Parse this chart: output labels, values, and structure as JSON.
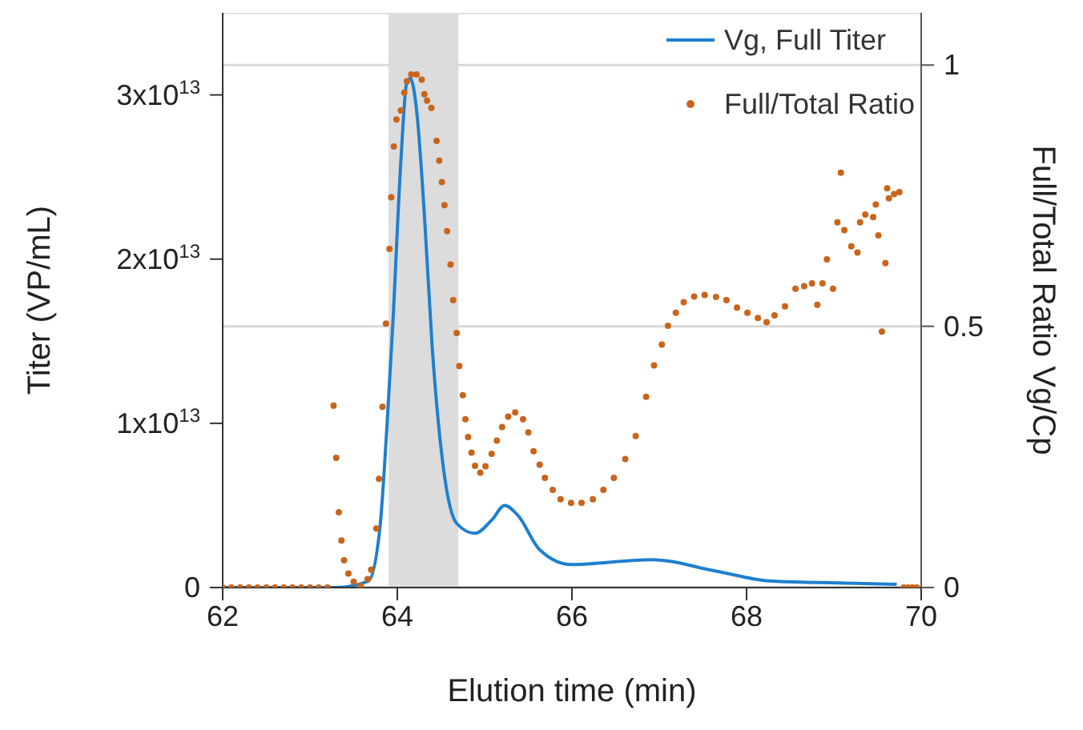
{
  "chart_data": {
    "type": "line",
    "xlabel": "Elution time (min)",
    "ylabel": "Titer (VP/mL)",
    "y2label": "Full/Total Ratio Vg/Cp",
    "xlim": [
      62,
      70
    ],
    "xticks": [
      62,
      64,
      66,
      68,
      70
    ],
    "ylim": [
      0,
      35000000000000.0
    ],
    "yticks": [
      {
        "value": 0,
        "label": "0"
      },
      {
        "value": 10000000000000.0,
        "label": "1x10$^{13}$"
      },
      {
        "value": 20000000000000.0,
        "label": "2x10$^{13}$"
      },
      {
        "value": 30000000000000.0,
        "label": "3x10$^{13}$"
      }
    ],
    "y2lim": [
      0,
      1.1
    ],
    "y2ticks": [
      0,
      0.5,
      1
    ],
    "grid": "y2",
    "legend": "top right",
    "bands": [
      {
        "axis": "x",
        "from": 63.9,
        "to": 64.7,
        "color": "#dcdcdc"
      }
    ],
    "series": [
      {
        "name": "Vg, Full Titer",
        "color": "#1f7fcf",
        "marker": "none",
        "line_style": "solid",
        "x": [
          62,
          63.3,
          63.67,
          63.8,
          63.88,
          63.95,
          64.04,
          64.11,
          64.15,
          64.22,
          64.31,
          64.4,
          64.53,
          64.68,
          64.89,
          65.08,
          65.23,
          65.38,
          65.63,
          65.99,
          66.91,
          67.65,
          68.26,
          68.86,
          69.72
        ],
        "values": [
          0,
          0,
          400000000000.0,
          3600000000000.0,
          9700000000000.0,
          16200000000000.0,
          25900000000000.0,
          30800000000000.0,
          31000000000000.0,
          29100000000000.0,
          22700000000000.0,
          14600000000000.0,
          7200000000000.0,
          3900000000000.0,
          3300000000000.0,
          4100000000000.0,
          5000000000000.0,
          4400000000000.0,
          2300000000000.0,
          1400000000000.0,
          1700000000000.0,
          1000000000000.0,
          400000000000.0,
          300000000000.0,
          200000000000.0
        ]
      },
      {
        "name": "Full/Total Ratio",
        "type": "scatter",
        "axis": "y2",
        "color": "#c8651b",
        "marker": "circle",
        "x": [
          62,
          62.1,
          62.2,
          62.3,
          62.4,
          62.5,
          62.6,
          62.7,
          62.8,
          62.9,
          63,
          63.1,
          63.2,
          63.27,
          63.3,
          63.33,
          63.36,
          63.39,
          63.44,
          63.5,
          63.58,
          63.66,
          63.7,
          63.76,
          63.79,
          63.83,
          63.87,
          63.91,
          63.93,
          63.96,
          63.99,
          64.04,
          64.08,
          64.11,
          64.16,
          64.22,
          64.28,
          64.31,
          64.34,
          64.39,
          64.45,
          64.48,
          64.51,
          64.54,
          64.57,
          64.61,
          64.64,
          64.68,
          64.71,
          64.75,
          64.78,
          64.81,
          64.85,
          64.89,
          64.95,
          65.01,
          65.08,
          65.14,
          65.2,
          65.27,
          65.35,
          65.44,
          65.5,
          65.56,
          65.63,
          65.69,
          65.78,
          65.87,
          65.99,
          66.11,
          66.24,
          66.36,
          66.48,
          66.61,
          66.73,
          66.85,
          66.94,
          67.03,
          67.1,
          67.19,
          67.28,
          67.4,
          67.52,
          67.65,
          67.77,
          67.89,
          68.01,
          68.13,
          68.23,
          68.32,
          68.44,
          68.56,
          68.66,
          68.75,
          68.81,
          68.87,
          68.92,
          68.99,
          69.04,
          69.08,
          69.12,
          69.2,
          69.27,
          69.3,
          69.36,
          69.45,
          69.48,
          69.51,
          69.55,
          69.59,
          69.61,
          69.63,
          69.69,
          69.75,
          69.8,
          69.85,
          69.9,
          69.95
        ],
        "values": [
          0,
          0,
          0,
          0,
          0,
          0,
          0,
          0,
          0,
          0,
          0,
          0,
          0,
          0.348,
          0.248,
          0.144,
          0.09,
          0.052,
          0.027,
          0.011,
          0.003,
          0.016,
          0.034,
          0.113,
          0.208,
          0.346,
          0.505,
          0.648,
          0.747,
          0.844,
          0.896,
          0.913,
          0.947,
          0.969,
          0.982,
          0.982,
          0.972,
          0.944,
          0.932,
          0.918,
          0.855,
          0.817,
          0.776,
          0.732,
          0.682,
          0.618,
          0.55,
          0.487,
          0.424,
          0.368,
          0.322,
          0.288,
          0.258,
          0.233,
          0.22,
          0.232,
          0.256,
          0.281,
          0.307,
          0.327,
          0.335,
          0.322,
          0.297,
          0.261,
          0.235,
          0.21,
          0.187,
          0.169,
          0.162,
          0.162,
          0.169,
          0.187,
          0.21,
          0.246,
          0.29,
          0.365,
          0.425,
          0.465,
          0.501,
          0.526,
          0.546,
          0.557,
          0.56,
          0.556,
          0.55,
          0.536,
          0.526,
          0.516,
          0.508,
          0.521,
          0.538,
          0.572,
          0.577,
          0.582,
          0.541,
          0.582,
          0.628,
          0.572,
          0.699,
          0.794,
          0.684,
          0.653,
          0.641,
          0.699,
          0.714,
          0.709,
          0.733,
          0.674,
          0.49,
          0.621,
          0.764,
          0.745,
          0.753,
          0.757,
          0,
          0,
          0,
          0
        ]
      }
    ]
  }
}
